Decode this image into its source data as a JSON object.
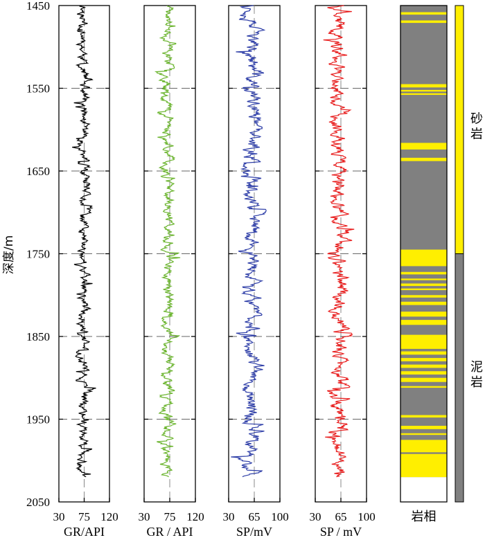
{
  "chart_data": {
    "type": "line",
    "ylabel": "深度/m",
    "y_ticks": [
      "1450",
      "1550",
      "1650",
      "1750",
      "1850",
      "1950",
      "2050"
    ],
    "ylim": [
      1450,
      2050
    ],
    "y_inverted": true,
    "data_depth_range": [
      1450,
      2020
    ],
    "panels": [
      {
        "xlabel": "GR/API",
        "xlim": [
          30,
          120
        ],
        "x_ticks": [
          "30",
          "75",
          "120"
        ],
        "color": "#000000",
        "center": 75,
        "mean": 74,
        "amp": 14,
        "seed": 11
      },
      {
        "xlabel": "GR / API",
        "xlim": [
          30,
          120
        ],
        "x_ticks": [
          "30",
          "75",
          "120"
        ],
        "color": "#6ab42d",
        "center": 75,
        "mean": 72,
        "amp": 14,
        "seed": 23
      },
      {
        "xlabel": "SP/mV",
        "xlim": [
          30,
          100
        ],
        "x_ticks": [
          "30",
          "65",
          "100"
        ],
        "color": "#2f3fa8",
        "center": 65,
        "mean": 62,
        "amp": 16,
        "seed": 37
      },
      {
        "xlabel": "SP / mV",
        "xlim": [
          30,
          100
        ],
        "x_ticks": [
          "30",
          "65",
          "100"
        ],
        "color": "#e81c1c",
        "center": 65,
        "mean": 62,
        "amp": 16,
        "seed": 41
      }
    ],
    "lithology": {
      "xlabel": "岩相",
      "colors": {
        "sand": "#ffef00",
        "mud": "#808080",
        "empty": "#ffffff"
      },
      "column_range": [
        1450,
        2020
      ],
      "sand_layers": [
        [
          1458,
          1461
        ],
        [
          1468,
          1471
        ],
        [
          1545,
          1549
        ],
        [
          1552,
          1554
        ],
        [
          1556,
          1558
        ],
        [
          1616,
          1624
        ],
        [
          1634,
          1638
        ],
        [
          1745,
          1765
        ],
        [
          1772,
          1775
        ],
        [
          1780,
          1782
        ],
        [
          1786,
          1789
        ],
        [
          1792,
          1794
        ],
        [
          1800,
          1803
        ],
        [
          1808,
          1812
        ],
        [
          1820,
          1826
        ],
        [
          1830,
          1836
        ],
        [
          1848,
          1865
        ],
        [
          1868,
          1872
        ],
        [
          1876,
          1880
        ],
        [
          1884,
          1888
        ],
        [
          1892,
          1896
        ],
        [
          1900,
          1905
        ],
        [
          1910,
          1912
        ],
        [
          1945,
          1948
        ],
        [
          1958,
          1962
        ],
        [
          1967,
          1969
        ],
        [
          1975,
          1990
        ],
        [
          1992,
          2020
        ]
      ]
    },
    "facies_bar": {
      "segments": [
        {
          "label": "砂岩",
          "from": 1450,
          "to": 1750,
          "color": "#ffef00"
        },
        {
          "label": "泥岩",
          "from": 1750,
          "to": 2050,
          "color": "#808080"
        }
      ]
    }
  }
}
